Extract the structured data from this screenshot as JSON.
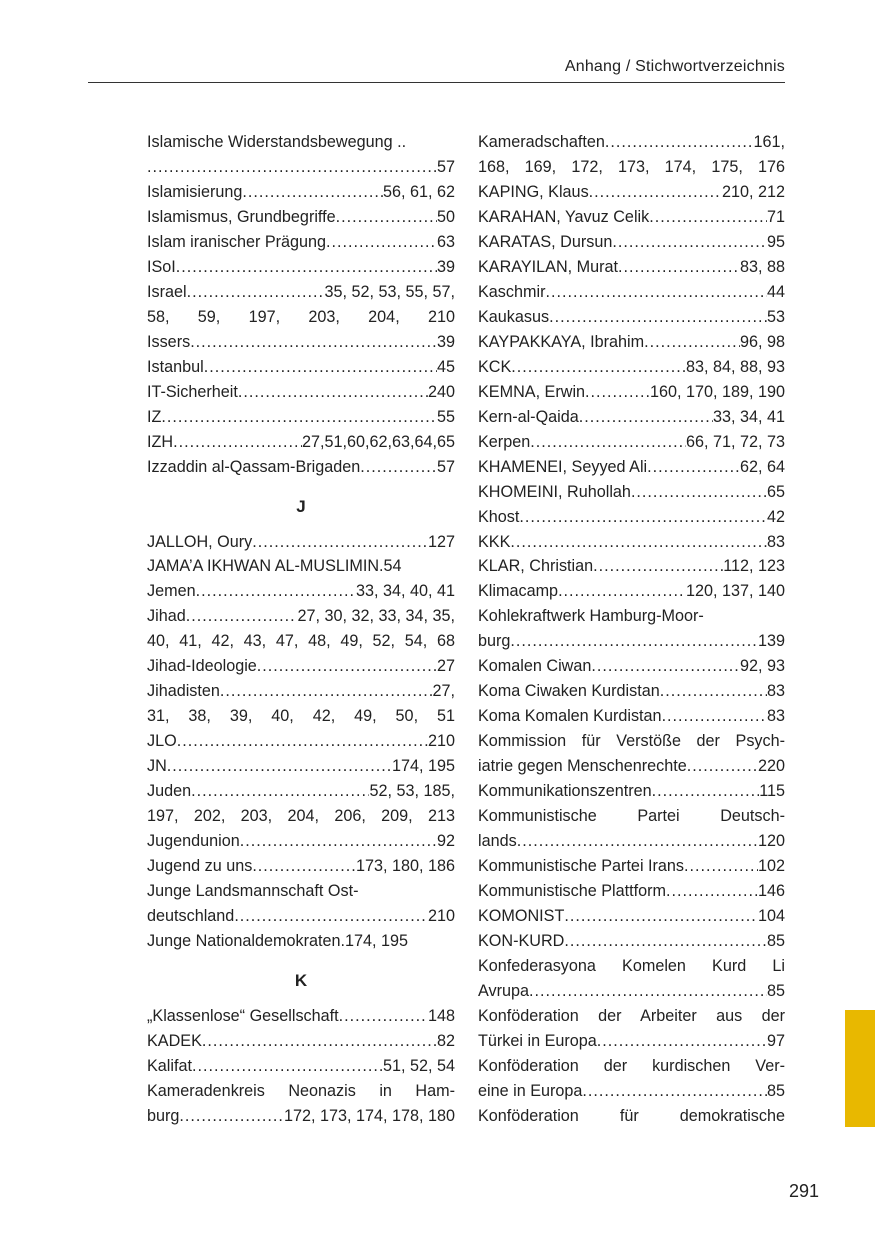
{
  "header": {
    "title": "Anhang / Stichwortverzeichnis"
  },
  "page_number": "291",
  "accent_color": "#e8b800",
  "left_column": [
    {
      "t": "Islamische Widerstandsbewegung .."
    },
    {
      "l": "",
      "p": "57"
    },
    {
      "l": "Islamisierung",
      "p": "56, 61, 62"
    },
    {
      "l": "Islamismus, Grundbegriffe",
      "p": "50"
    },
    {
      "l": "Islam iranischer Prägung",
      "p": "63"
    },
    {
      "l": "ISoI",
      "p": "39"
    },
    {
      "l": "Israel",
      "p": "35,  52,  53,  55,  57,"
    },
    {
      "j": "58,  59,  197,  203,  204,  210"
    },
    {
      "l": "Issers",
      "p": "39"
    },
    {
      "l": "Istanbul",
      "p": "45"
    },
    {
      "l": "IT-Sicherheit",
      "p": "240"
    },
    {
      "l": "IZ",
      "p": "55"
    },
    {
      "l": "IZH",
      "p": "27,51,60,62,63,64,65"
    },
    {
      "l": "Izzaddin al-Qassam-Brigaden",
      "p": "57"
    },
    {
      "h": "J"
    },
    {
      "l": "JALLOH, Oury",
      "p": "127"
    },
    {
      "t": "JAMA’A IKHWAN AL-MUSLIMIN.54"
    },
    {
      "l": "Jemen",
      "p": "33, 34, 40, 41"
    },
    {
      "l": "Jihad",
      "p": "27, 30, 32, 33, 34, 35,"
    },
    {
      "j": "40, 41, 42, 43, 47, 48, 49, 52, 54, 68"
    },
    {
      "l": "Jihad-Ideologie",
      "p": "27"
    },
    {
      "l": "Jihadisten",
      "p": "27,"
    },
    {
      "j": "31,  38,  39,  40,  42,  49,  50,  51"
    },
    {
      "l": "JLO",
      "p": "210"
    },
    {
      "l": "JN",
      "p": "174, 195"
    },
    {
      "l": "Juden",
      "p": "52, 53, 185,"
    },
    {
      "j": "197, 202, 203, 204, 206, 209, 213"
    },
    {
      "l": "Jugendunion",
      "p": "92"
    },
    {
      "l": "Jugend zu uns",
      "p": "173, 180, 186"
    },
    {
      "t": "Junge Landsmannschaft Ost-"
    },
    {
      "l": "deutschland",
      "p": "210"
    },
    {
      "t": "Junge Nationaldemokraten.174, 195"
    },
    {
      "h": "K"
    },
    {
      "l": "„Klassenlose“ Gesellschaft",
      "p": "148"
    },
    {
      "l": "KADEK",
      "p": "82"
    },
    {
      "l": "Kalifat",
      "p": "51, 52, 54"
    },
    {
      "j": "Kameradenkreis  Neonazis  in  Ham-"
    },
    {
      "l": "burg",
      "p": "172, 173, 174, 178, 180"
    }
  ],
  "right_column": [
    {
      "l": "Kameradschaften",
      "p": "161,"
    },
    {
      "j": "168, 169, 172, 173, 174, 175, 176"
    },
    {
      "l": "KAPING, Klaus",
      "p": "210, 212"
    },
    {
      "l": "KARAHAN, Yavuz Celik",
      "p": "71"
    },
    {
      "l": "KARATAS, Dursun",
      "p": "95"
    },
    {
      "l": "KARAYILAN, Murat",
      "p": "83, 88"
    },
    {
      "l": "Kaschmir",
      "p": "44"
    },
    {
      "l": "Kaukasus",
      "p": "53"
    },
    {
      "l": "KAYPAKKAYA, Ibrahim",
      "p": "96, 98"
    },
    {
      "l": "KCK",
      "p": "83, 84, 88, 93"
    },
    {
      "l": "KEMNA, Erwin",
      "p": "160, 170, 189, 190"
    },
    {
      "l": "Kern-al-Qaida",
      "p": "33, 34, 41"
    },
    {
      "l": "Kerpen",
      "p": "66, 71, 72, 73"
    },
    {
      "l": "KHAMENEI, Seyyed Ali",
      "p": "62, 64"
    },
    {
      "l": "KHOMEINI, Ruhollah",
      "p": "65"
    },
    {
      "l": "Khost",
      "p": "42"
    },
    {
      "l": "KKK",
      "p": "83"
    },
    {
      "l": "KLAR, Christian",
      "p": "112, 123"
    },
    {
      "l": "Klimacamp",
      "p": "120, 137, 140"
    },
    {
      "t": "Kohlekraftwerk Hamburg-Moor-"
    },
    {
      "l": "burg",
      "p": "139"
    },
    {
      "l": "Komalen Ciwan",
      "p": "92, 93"
    },
    {
      "l": "Koma Ciwaken Kurdistan",
      "p": "83"
    },
    {
      "l": "Koma Komalen Kurdistan",
      "p": "83"
    },
    {
      "j": "Kommission für Verstöße der Psych-"
    },
    {
      "l": "iatrie gegen Menschenrechte",
      "p": "220"
    },
    {
      "l": "Kommunikationszentren",
      "p": "115"
    },
    {
      "j": "Kommunistische  Partei  Deutsch-"
    },
    {
      "l": "lands",
      "p": "120"
    },
    {
      "l": "Kommunistische Partei Irans",
      "p": "102"
    },
    {
      "l": "Kommunistische Plattform",
      "p": "146"
    },
    {
      "l": "KOMONIST",
      "p": "104"
    },
    {
      "l": "KON-KURD",
      "p": "85"
    },
    {
      "j": "Konfederasyona  Komelen  Kurd  Li"
    },
    {
      "l": "Avrupa",
      "p": "85"
    },
    {
      "j": "Konföderation  der  Arbeiter  aus  der"
    },
    {
      "l": "Türkei in Europa",
      "p": "97"
    },
    {
      "j": "Konföderation  der  kurdischen  Ver-"
    },
    {
      "l": "eine in Europa",
      "p": "85"
    },
    {
      "j": "Konföderation  für  demokratische"
    }
  ]
}
